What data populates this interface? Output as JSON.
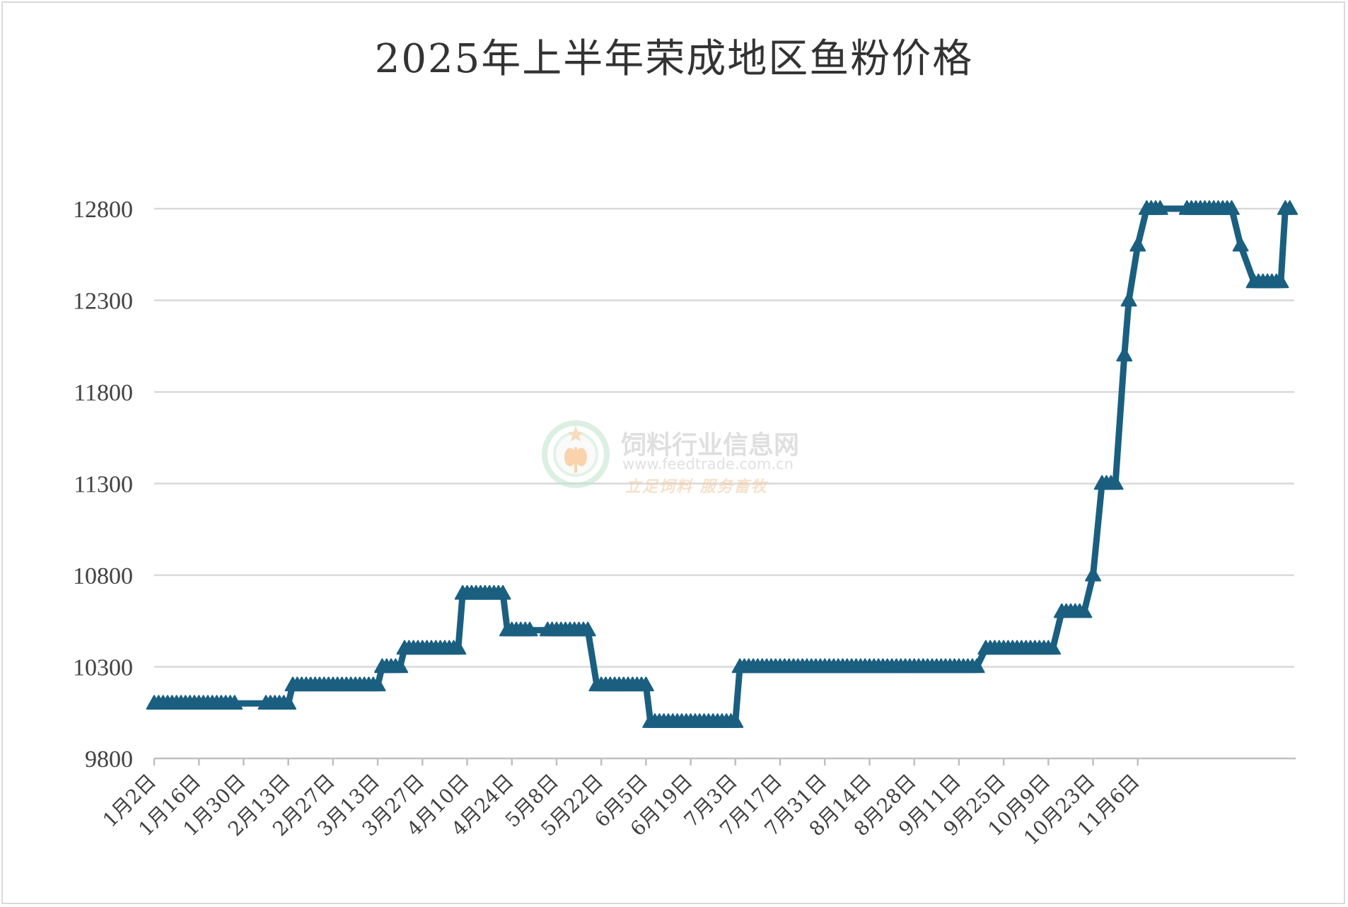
{
  "chart_data": {
    "type": "line",
    "title": "2025年上半年荣成地区鱼粉价格",
    "xlabel": "",
    "ylabel": "",
    "ylim": [
      9800,
      12800
    ],
    "yticks": [
      9800,
      10300,
      10800,
      11300,
      11800,
      12300,
      12800
    ],
    "grid": true,
    "legend": "none",
    "colors": {
      "line": "#1a5f80",
      "grid": "#d9d9d9",
      "text": "#404040"
    },
    "x_tick_labels": [
      "1月2日",
      "1月16日",
      "1月30日",
      "2月13日",
      "2月27日",
      "3月13日",
      "3月27日",
      "4月10日",
      "4月24日",
      "5月8日",
      "5月22日",
      "6月5日",
      "6月19日",
      "7月3日",
      "7月17日",
      "7月31日",
      "8月14日",
      "8月28日",
      "9月11日",
      "9月25日",
      "10月9日",
      "10月23日",
      "11月6日"
    ],
    "series": [
      {
        "marker": "triangle",
        "points": [
          [
            0,
            10100
          ],
          [
            1,
            10100
          ],
          [
            2,
            10100
          ],
          [
            3,
            10100
          ],
          [
            4,
            10100
          ],
          [
            5,
            10100
          ],
          [
            6,
            10100
          ],
          [
            7,
            10100
          ],
          [
            8,
            10100
          ],
          [
            9,
            10100
          ],
          [
            10,
            10100
          ],
          [
            11,
            10100
          ],
          [
            12,
            10100
          ],
          [
            13,
            10100
          ],
          [
            14,
            10100
          ],
          [
            15,
            10100
          ],
          [
            16,
            10100
          ],
          [
            17,
            10100
          ],
          [
            18,
            10100
          ],
          [
            25,
            10100
          ],
          [
            26,
            10100
          ],
          [
            27,
            10100
          ],
          [
            28,
            10100
          ],
          [
            29,
            10100
          ],
          [
            30,
            10100
          ],
          [
            31,
            10200
          ],
          [
            32,
            10200
          ],
          [
            33,
            10200
          ],
          [
            34,
            10200
          ],
          [
            35,
            10200
          ],
          [
            36,
            10200
          ],
          [
            37,
            10200
          ],
          [
            38,
            10200
          ],
          [
            39,
            10200
          ],
          [
            40,
            10200
          ],
          [
            41,
            10200
          ],
          [
            42,
            10200
          ],
          [
            43,
            10200
          ],
          [
            44,
            10200
          ],
          [
            45,
            10200
          ],
          [
            46,
            10200
          ],
          [
            47,
            10200
          ],
          [
            48,
            10200
          ],
          [
            49,
            10200
          ],
          [
            50,
            10200
          ],
          [
            51,
            10300
          ],
          [
            52,
            10300
          ],
          [
            53,
            10300
          ],
          [
            54,
            10300
          ],
          [
            55,
            10300
          ],
          [
            56,
            10400
          ],
          [
            57,
            10400
          ],
          [
            58,
            10400
          ],
          [
            59,
            10400
          ],
          [
            60,
            10400
          ],
          [
            61,
            10400
          ],
          [
            62,
            10400
          ],
          [
            63,
            10400
          ],
          [
            64,
            10400
          ],
          [
            65,
            10400
          ],
          [
            66,
            10400
          ],
          [
            67,
            10400
          ],
          [
            68,
            10400
          ],
          [
            69,
            10700
          ],
          [
            70,
            10700
          ],
          [
            71,
            10700
          ],
          [
            72,
            10700
          ],
          [
            73,
            10700
          ],
          [
            74,
            10700
          ],
          [
            75,
            10700
          ],
          [
            76,
            10700
          ],
          [
            77,
            10700
          ],
          [
            78,
            10700
          ],
          [
            79,
            10500
          ],
          [
            80,
            10500
          ],
          [
            81,
            10500
          ],
          [
            82,
            10500
          ],
          [
            83,
            10500
          ],
          [
            84,
            10500
          ],
          [
            88,
            10500
          ],
          [
            89,
            10500
          ],
          [
            90,
            10500
          ],
          [
            91,
            10500
          ],
          [
            92,
            10500
          ],
          [
            93,
            10500
          ],
          [
            94,
            10500
          ],
          [
            95,
            10500
          ],
          [
            96,
            10500
          ],
          [
            97,
            10500
          ],
          [
            99,
            10200
          ],
          [
            100,
            10200
          ],
          [
            101,
            10200
          ],
          [
            102,
            10200
          ],
          [
            103,
            10200
          ],
          [
            104,
            10200
          ],
          [
            105,
            10200
          ],
          [
            106,
            10200
          ],
          [
            107,
            10200
          ],
          [
            108,
            10200
          ],
          [
            109,
            10200
          ],
          [
            110,
            10200
          ],
          [
            111,
            10000
          ],
          [
            112,
            10000
          ],
          [
            113,
            10000
          ],
          [
            114,
            10000
          ],
          [
            115,
            10000
          ],
          [
            116,
            10000
          ],
          [
            117,
            10000
          ],
          [
            118,
            10000
          ],
          [
            119,
            10000
          ],
          [
            120,
            10000
          ],
          [
            121,
            10000
          ],
          [
            122,
            10000
          ],
          [
            123,
            10000
          ],
          [
            124,
            10000
          ],
          [
            125,
            10000
          ],
          [
            126,
            10000
          ],
          [
            127,
            10000
          ],
          [
            128,
            10000
          ],
          [
            129,
            10000
          ],
          [
            130,
            10000
          ],
          [
            131,
            10300
          ],
          [
            132,
            10300
          ],
          [
            133,
            10300
          ],
          [
            134,
            10300
          ],
          [
            135,
            10300
          ],
          [
            136,
            10300
          ],
          [
            137,
            10300
          ],
          [
            138,
            10300
          ],
          [
            139,
            10300
          ],
          [
            140,
            10300
          ],
          [
            141,
            10300
          ],
          [
            142,
            10300
          ],
          [
            143,
            10300
          ],
          [
            144,
            10300
          ],
          [
            145,
            10300
          ],
          [
            146,
            10300
          ],
          [
            147,
            10300
          ],
          [
            148,
            10300
          ],
          [
            149,
            10300
          ],
          [
            150,
            10300
          ],
          [
            151,
            10300
          ],
          [
            152,
            10300
          ],
          [
            153,
            10300
          ],
          [
            154,
            10300
          ],
          [
            155,
            10300
          ],
          [
            156,
            10300
          ],
          [
            157,
            10300
          ],
          [
            158,
            10300
          ],
          [
            159,
            10300
          ],
          [
            160,
            10300
          ],
          [
            161,
            10300
          ],
          [
            162,
            10300
          ],
          [
            163,
            10300
          ],
          [
            164,
            10300
          ],
          [
            165,
            10300
          ],
          [
            166,
            10300
          ],
          [
            167,
            10300
          ],
          [
            168,
            10300
          ],
          [
            169,
            10300
          ],
          [
            170,
            10300
          ],
          [
            171,
            10300
          ],
          [
            172,
            10300
          ],
          [
            173,
            10300
          ],
          [
            174,
            10300
          ],
          [
            175,
            10300
          ],
          [
            176,
            10300
          ],
          [
            177,
            10300
          ],
          [
            178,
            10300
          ],
          [
            179,
            10300
          ],
          [
            180,
            10300
          ],
          [
            181,
            10300
          ],
          [
            182,
            10300
          ],
          [
            183,
            10300
          ],
          [
            184,
            10300
          ],
          [
            186,
            10400
          ],
          [
            187,
            10400
          ],
          [
            188,
            10400
          ],
          [
            189,
            10400
          ],
          [
            190,
            10400
          ],
          [
            191,
            10400
          ],
          [
            192,
            10400
          ],
          [
            193,
            10400
          ],
          [
            194,
            10400
          ],
          [
            195,
            10400
          ],
          [
            196,
            10400
          ],
          [
            197,
            10400
          ],
          [
            198,
            10400
          ],
          [
            199,
            10400
          ],
          [
            200,
            10400
          ],
          [
            201,
            10400
          ],
          [
            203,
            10600
          ],
          [
            204,
            10600
          ],
          [
            205,
            10600
          ],
          [
            206,
            10600
          ],
          [
            207,
            10600
          ],
          [
            208,
            10600
          ],
          [
            210,
            10800
          ],
          [
            212,
            11300
          ],
          [
            213,
            11300
          ],
          [
            214,
            11300
          ],
          [
            215,
            11300
          ],
          [
            217,
            12000
          ],
          [
            218,
            12300
          ],
          [
            220,
            12600
          ],
          [
            222,
            12800
          ],
          [
            223,
            12800
          ],
          [
            224,
            12800
          ],
          [
            225,
            12800
          ],
          [
            231,
            12800
          ],
          [
            232,
            12800
          ],
          [
            233,
            12800
          ],
          [
            234,
            12800
          ],
          [
            235,
            12800
          ],
          [
            236,
            12800
          ],
          [
            237,
            12800
          ],
          [
            238,
            12800
          ],
          [
            239,
            12800
          ],
          [
            240,
            12800
          ],
          [
            241,
            12800
          ],
          [
            243,
            12600
          ],
          [
            246,
            12400
          ],
          [
            247,
            12400
          ],
          [
            248,
            12400
          ],
          [
            249,
            12400
          ],
          [
            250,
            12400
          ],
          [
            251,
            12400
          ],
          [
            252,
            12400
          ],
          [
            253,
            12800
          ],
          [
            254,
            12800
          ]
        ]
      }
    ]
  },
  "watermark": {
    "name": "饲料行业信息网",
    "url": "www.feedtrade.com.cn",
    "slogan": "立足饲料  服务畜牧"
  }
}
